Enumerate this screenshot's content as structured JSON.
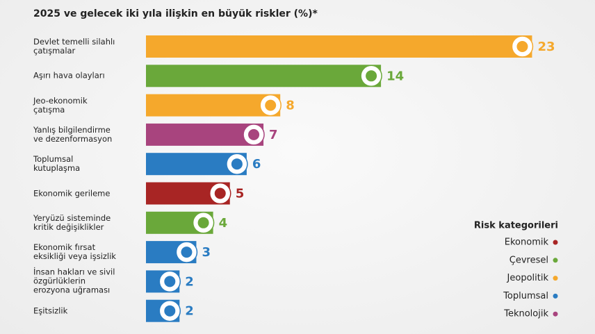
{
  "chart_data": {
    "type": "bar",
    "orientation": "horizontal",
    "title": "2025 ve gelecek iki yıla ilişkin en büyük riskler (%)*",
    "categories": [
      "Devlet temelli silahlı\nçatışmalar",
      "Aşırı hava olayları",
      "Jeo-ekonomik\nçatışma",
      "Yanlış bilgilendirme\nve dezenformasyon",
      "Toplumsal\nkutuplaşma",
      "Ekonomik gerileme",
      "Yeryüzü sisteminde\nkritik değişiklikler",
      "Ekonomik fırsat\neksikliği veya işsizlik",
      "İnsan hakları ve sivil\nözgürlüklerin\nerozyona uğraması",
      "Eşitsizlik"
    ],
    "values": [
      23,
      14,
      8,
      7,
      6,
      5,
      4,
      3,
      2,
      2
    ],
    "bar_colors": [
      "#f5a82c",
      "#6aa83a",
      "#f5a82c",
      "#a8447e",
      "#2a7cc2",
      "#a82524",
      "#6aa83a",
      "#2a7cc2",
      "#2a7cc2",
      "#2a7cc2"
    ],
    "legend_title": "Risk kategorileri",
    "legend": [
      {
        "name": "Ekonomik",
        "color": "#a82524"
      },
      {
        "name": "Çevresel",
        "color": "#6aa83a"
      },
      {
        "name": "Jeopolitik",
        "color": "#f5a82c"
      },
      {
        "name": "Toplumsal",
        "color": "#2a7cc2"
      },
      {
        "name": "Teknolojik",
        "color": "#a8447e"
      }
    ]
  }
}
